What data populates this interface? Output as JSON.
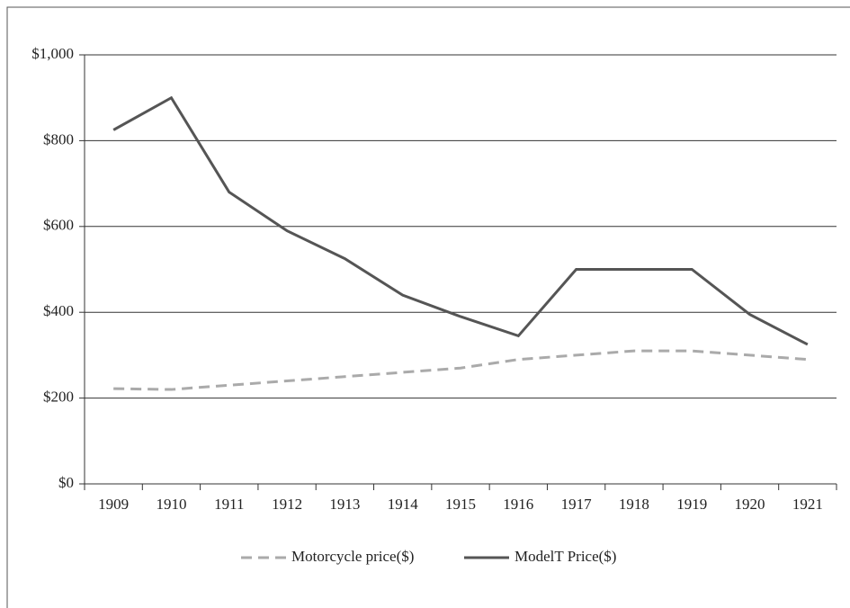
{
  "chart_data": {
    "type": "line",
    "categories": [
      "1909",
      "1910",
      "1911",
      "1912",
      "1913",
      "1914",
      "1915",
      "1916",
      "1917",
      "1918",
      "1919",
      "1920",
      "1921"
    ],
    "series": [
      {
        "name": "Motorcycle price($)",
        "color": "#aaaaaa",
        "dashed": true,
        "values": [
          222,
          220,
          230,
          240,
          250,
          260,
          270,
          290,
          300,
          310,
          310,
          300,
          290
        ]
      },
      {
        "name": "ModelT Price($)",
        "color": "#555555",
        "dashed": false,
        "values": [
          825,
          900,
          680,
          590,
          525,
          440,
          390,
          345,
          500,
          500,
          500,
          395,
          325
        ]
      }
    ],
    "ylim": [
      0,
      1000
    ],
    "yticks": [
      {
        "value": 0,
        "label": "$0"
      },
      {
        "value": 200,
        "label": "$200"
      },
      {
        "value": 400,
        "label": "$400"
      },
      {
        "value": 600,
        "label": "$600"
      },
      {
        "value": 800,
        "label": "$800"
      },
      {
        "value": 1000,
        "label": "$1,000"
      }
    ],
    "grid": true,
    "legend": "bottom"
  }
}
